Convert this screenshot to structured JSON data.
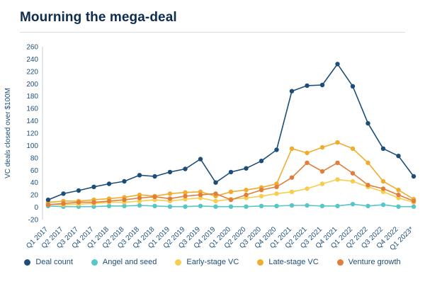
{
  "page": {
    "title": "Mourning the mega-deal"
  },
  "colors": {
    "title_text": "#0f2d4e",
    "axis_text": "#1d4e79",
    "axis_line": "#c4cbd4",
    "divider": "#d8dce0"
  },
  "chart_data": {
    "type": "line",
    "title": "Mourning the mega-deal",
    "xlabel": "",
    "ylabel": "VC deals closed over $100M",
    "ylim": [
      -20,
      260
    ],
    "ytick_step": 20,
    "grid": false,
    "legend_position": "bottom",
    "marker": "circle",
    "categories": [
      "Q1 2017",
      "Q2 2017",
      "Q3 2017",
      "Q4 2017",
      "Q1 2018",
      "Q2 2018",
      "Q3 2018",
      "Q4 2018",
      "Q1 2019",
      "Q2 2019",
      "Q3 2019",
      "Q4 2019",
      "Q1 2020",
      "Q2 2020",
      "Q3 2020",
      "Q4 2020",
      "Q1 2021",
      "Q2 2021",
      "Q3 2021",
      "Q4 2021",
      "Q1 2022",
      "Q2 2022",
      "Q3 2022",
      "Q4 2022",
      "Q1 2023*"
    ],
    "series": [
      {
        "name": "Deal count",
        "color": "#1d4e79",
        "values": [
          12,
          22,
          27,
          33,
          38,
          42,
          52,
          50,
          57,
          62,
          78,
          40,
          57,
          63,
          75,
          93,
          188,
          197,
          198,
          232,
          196,
          136,
          95,
          83,
          50
        ]
      },
      {
        "name": "Angel and seed",
        "color": "#56c6c8",
        "values": [
          2,
          1,
          1,
          1,
          2,
          2,
          3,
          2,
          1,
          1,
          2,
          1,
          1,
          1,
          2,
          2,
          3,
          3,
          2,
          2,
          5,
          2,
          4,
          1,
          1
        ]
      },
      {
        "name": "Early-stage VC",
        "color": "#f6cd4c",
        "values": [
          5,
          4,
          5,
          6,
          8,
          8,
          10,
          12,
          10,
          13,
          15,
          10,
          13,
          15,
          18,
          22,
          25,
          30,
          38,
          45,
          42,
          33,
          25,
          15,
          8
        ]
      },
      {
        "name": "Late-stage VC",
        "color": "#f0ad2d",
        "values": [
          8,
          10,
          10,
          12,
          14,
          16,
          20,
          18,
          22,
          24,
          25,
          18,
          25,
          28,
          32,
          38,
          95,
          88,
          97,
          105,
          95,
          72,
          42,
          28,
          13
        ]
      },
      {
        "name": "Venture growth",
        "color": "#e07e3a",
        "values": [
          4,
          6,
          8,
          8,
          10,
          12,
          15,
          17,
          14,
          18,
          20,
          22,
          12,
          20,
          28,
          33,
          48,
          72,
          58,
          72,
          55,
          36,
          30,
          20,
          10
        ]
      }
    ]
  }
}
